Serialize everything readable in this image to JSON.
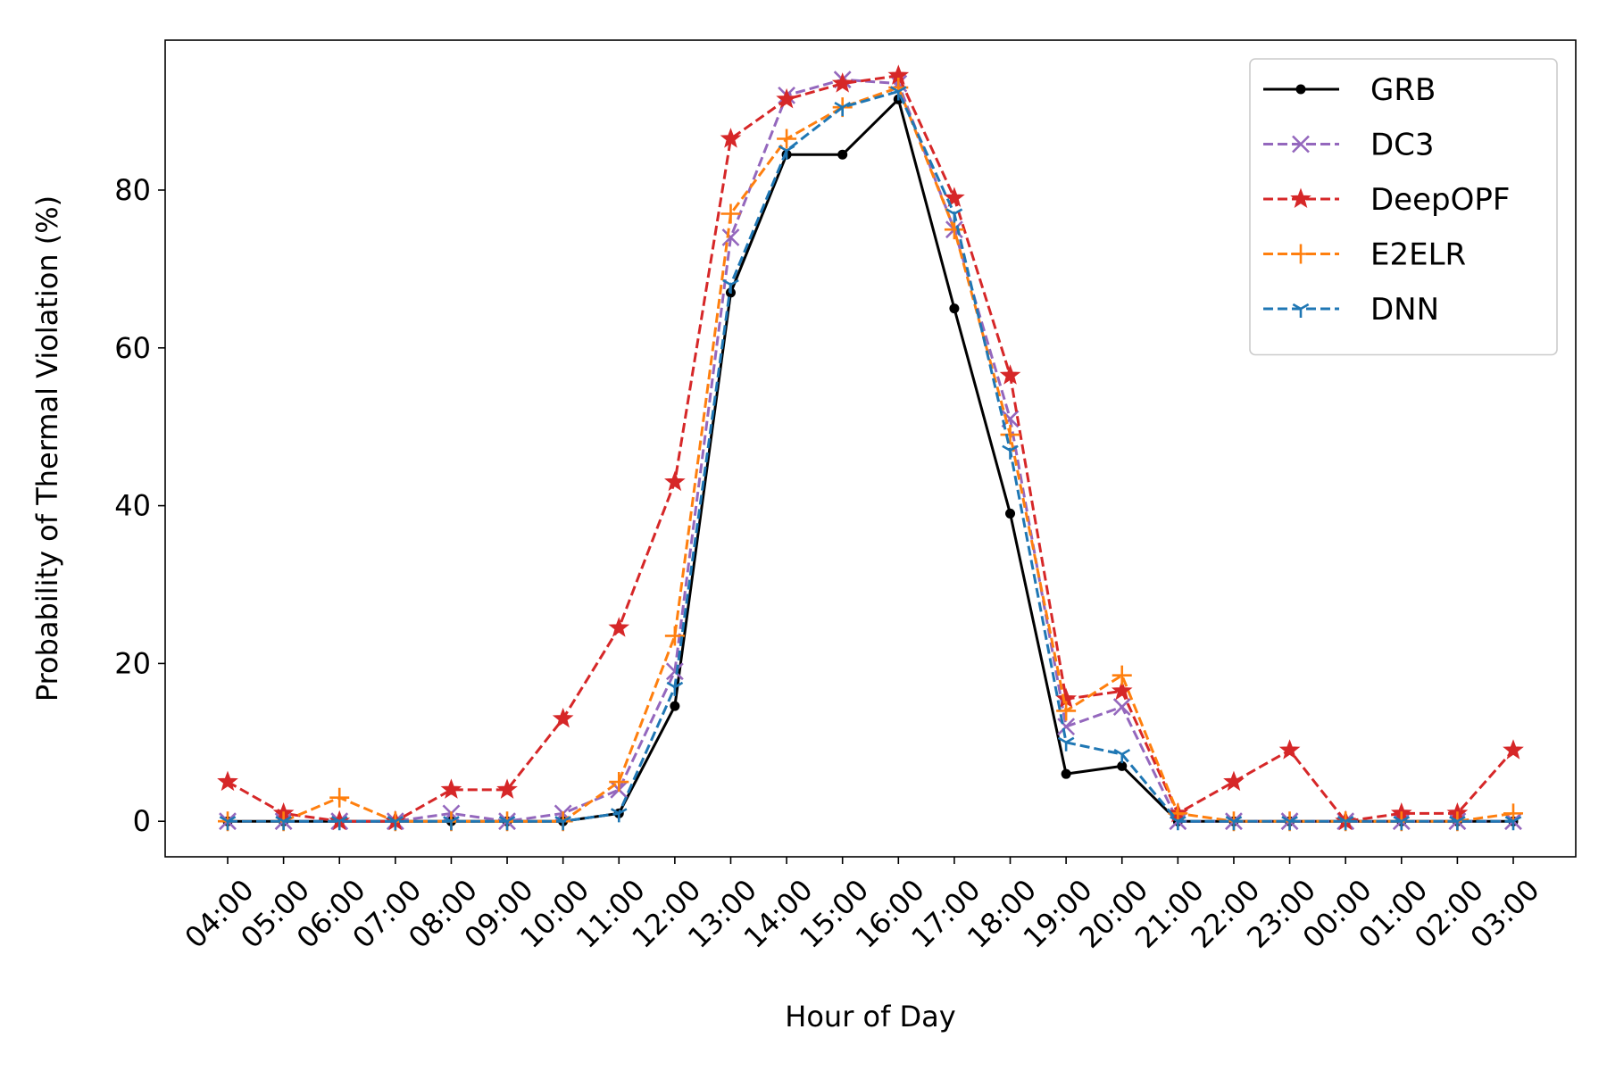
{
  "chart_data": {
    "type": "line",
    "title": "",
    "xlabel": "Hour of Day",
    "ylabel": "Probability of Thermal Violation (%)",
    "categories": [
      "04:00",
      "05:00",
      "06:00",
      "07:00",
      "08:00",
      "09:00",
      "10:00",
      "11:00",
      "12:00",
      "13:00",
      "14:00",
      "15:00",
      "16:00",
      "17:00",
      "18:00",
      "19:00",
      "20:00",
      "21:00",
      "22:00",
      "23:00",
      "00:00",
      "01:00",
      "02:00",
      "03:00"
    ],
    "ylim": [
      -4.5,
      99
    ],
    "yticks": [
      0,
      20,
      40,
      60,
      80
    ],
    "grid": false,
    "legend": "top-right",
    "series": [
      {
        "name": "GRB",
        "color": "#000000",
        "dash": "solid",
        "marker": "dot",
        "values": [
          0,
          0,
          0,
          0,
          0,
          0,
          0,
          1,
          14.6,
          67,
          84.5,
          84.5,
          91.5,
          65,
          39,
          6,
          7,
          0,
          0,
          0,
          0,
          0,
          0,
          0
        ]
      },
      {
        "name": "DC3",
        "color": "#9467bd",
        "dash": "dashed",
        "marker": "x",
        "values": [
          0,
          0,
          0,
          0,
          1,
          0,
          1,
          4,
          19,
          74,
          92,
          94,
          93.5,
          75,
          51,
          12,
          14.5,
          0,
          0,
          0,
          0,
          0,
          0,
          0
        ]
      },
      {
        "name": "DeepOPF",
        "color": "#d62728",
        "dash": "dashed",
        "marker": "star",
        "values": [
          5,
          1,
          0,
          0,
          4,
          4,
          13,
          24.5,
          43,
          86.5,
          91.5,
          93.5,
          94.5,
          79,
          56.5,
          15.5,
          16.5,
          1,
          5,
          9,
          0,
          1,
          1,
          9
        ]
      },
      {
        "name": "E2ELR",
        "color": "#ff7f0e",
        "dash": "dashed",
        "marker": "plus",
        "values": [
          0,
          0,
          3,
          0,
          0,
          0,
          0,
          5,
          23.5,
          77,
          86.5,
          90.5,
          93,
          75,
          49,
          14,
          18.5,
          1,
          0,
          0,
          0,
          0,
          0,
          1
        ]
      },
      {
        "name": "DNN",
        "color": "#1f77b4",
        "dash": "dashed",
        "marker": "tri",
        "values": [
          0,
          0,
          0,
          0,
          0,
          0,
          0,
          1,
          17,
          68,
          85,
          90.5,
          92.5,
          77,
          47,
          10,
          8.5,
          0,
          0,
          0,
          0,
          0,
          0,
          0
        ]
      }
    ]
  }
}
